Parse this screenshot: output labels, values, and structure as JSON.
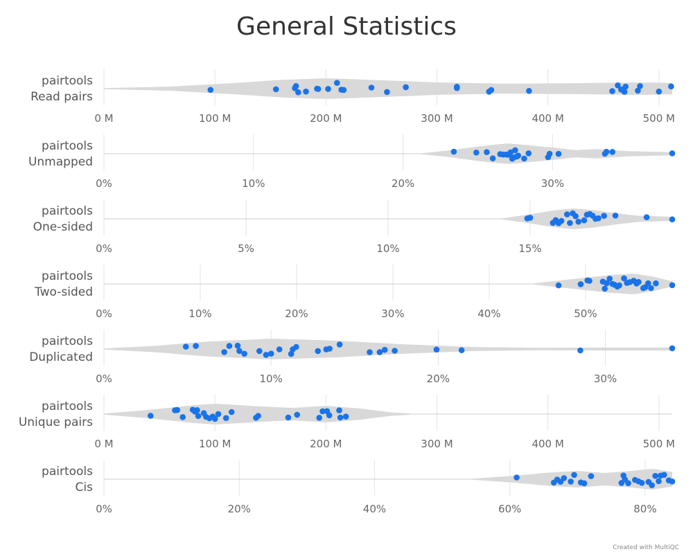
{
  "title": "General Statistics",
  "credit": "Created with MultiQC",
  "colors": {
    "point": "#1a73e8",
    "violin": "#d9d9d9",
    "grid": "#e3e3e3",
    "axis_line": "#cccccc"
  },
  "chart_data": [
    {
      "type": "violin",
      "label_lines": [
        "pairtools",
        "Read pairs"
      ],
      "unit": "M",
      "xlim": [
        0,
        512
      ],
      "ticks": [
        0,
        100,
        200,
        300,
        400,
        500
      ],
      "tick_labels": [
        "0 M",
        "100 M",
        "200 M",
        "300 M",
        "400 M",
        "500 M"
      ],
      "violin_range": [
        0,
        512
      ],
      "density": [
        [
          0,
          0.05
        ],
        [
          60,
          0.2
        ],
        [
          120,
          0.55
        ],
        [
          160,
          0.85
        ],
        [
          200,
          1.0
        ],
        [
          240,
          0.85
        ],
        [
          300,
          0.6
        ],
        [
          360,
          0.48
        ],
        [
          420,
          0.52
        ],
        [
          480,
          0.6
        ],
        [
          512,
          0.55
        ]
      ],
      "values": [
        96,
        155,
        172,
        173,
        175,
        182,
        192,
        193,
        202,
        210,
        214,
        216,
        241,
        255,
        272,
        318,
        318,
        347,
        349,
        383,
        458,
        463,
        466,
        469,
        470,
        481,
        483,
        500,
        511
      ]
    },
    {
      "type": "violin",
      "label_lines": [
        "pairtools",
        "Unmapped"
      ],
      "unit": "%",
      "xlim": [
        0,
        38
      ],
      "ticks": [
        0,
        10,
        20,
        30
      ],
      "tick_labels": [
        "0%",
        "10%",
        "20%",
        "30%"
      ],
      "violin_range": [
        21.2,
        38
      ],
      "density": [
        [
          21.2,
          0.05
        ],
        [
          23,
          0.3
        ],
        [
          25,
          0.7
        ],
        [
          27,
          1.0
        ],
        [
          28.5,
          0.8
        ],
        [
          30,
          0.6
        ],
        [
          31.5,
          0.35
        ],
        [
          33,
          0.45
        ],
        [
          35,
          0.25
        ],
        [
          38,
          0.15
        ]
      ],
      "values": [
        23.4,
        24.9,
        25.6,
        26,
        26.5,
        26.7,
        26.9,
        27,
        27.1,
        27.2,
        27.3,
        27.4,
        27.5,
        27.6,
        27.7,
        28.1,
        28.4,
        29.7,
        29.8,
        30.4,
        33.5,
        33.6,
        34,
        38
      ]
    },
    {
      "type": "violin",
      "label_lines": [
        "pairtools",
        "One-sided"
      ],
      "unit": "%",
      "xlim": [
        0,
        20
      ],
      "ticks": [
        0,
        5,
        10,
        15
      ],
      "tick_labels": [
        "0%",
        "5%",
        "10%",
        "15%"
      ],
      "violin_range": [
        14,
        20
      ],
      "density": [
        [
          14,
          0.05
        ],
        [
          14.8,
          0.35
        ],
        [
          15.8,
          0.8
        ],
        [
          16.5,
          1.0
        ],
        [
          17.2,
          0.85
        ],
        [
          18,
          0.55
        ],
        [
          18.8,
          0.3
        ],
        [
          20,
          0.2
        ]
      ],
      "values": [
        14.9,
        15,
        15.8,
        15.9,
        16,
        16.1,
        16.3,
        16.4,
        16.5,
        16.6,
        16.7,
        16.9,
        17,
        17.1,
        17.2,
        17.3,
        17.4,
        17.6,
        18,
        19.1,
        20
      ]
    },
    {
      "type": "violin",
      "label_lines": [
        "pairtools",
        "Two-sided"
      ],
      "unit": "%",
      "xlim": [
        0,
        59
      ],
      "ticks": [
        0,
        10,
        20,
        30,
        40,
        50
      ],
      "tick_labels": [
        "0%",
        "10%",
        "20%",
        "30%",
        "40%",
        "50%"
      ],
      "violin_range": [
        44.6,
        59
      ],
      "density": [
        [
          44.6,
          0.05
        ],
        [
          47,
          0.3
        ],
        [
          50,
          0.6
        ],
        [
          52.5,
          0.85
        ],
        [
          55,
          1.0
        ],
        [
          57,
          0.7
        ],
        [
          59,
          0.25
        ]
      ],
      "values": [
        47.2,
        49.5,
        50.2,
        50.4,
        51.8,
        52,
        52.2,
        52.5,
        52.8,
        53,
        53.3,
        53.5,
        54,
        54.3,
        54.6,
        55,
        55.3,
        55.5,
        56,
        56.2,
        56.5,
        56.8,
        57.3,
        59
      ]
    },
    {
      "type": "violin",
      "label_lines": [
        "pairtools",
        "Duplicated"
      ],
      "unit": "%",
      "xlim": [
        0,
        34
      ],
      "ticks": [
        0,
        10,
        20,
        30
      ],
      "tick_labels": [
        "0%",
        "10%",
        "20%",
        "30%"
      ],
      "violin_range": [
        0,
        34
      ],
      "density": [
        [
          0,
          0.05
        ],
        [
          3,
          0.3
        ],
        [
          6,
          0.7
        ],
        [
          10,
          1.0
        ],
        [
          14,
          0.8
        ],
        [
          18,
          0.45
        ],
        [
          22,
          0.2
        ],
        [
          26,
          0.12
        ],
        [
          30,
          0.14
        ],
        [
          34,
          0.14
        ]
      ],
      "values": [
        4.9,
        5.5,
        7.2,
        7.5,
        8,
        8.1,
        8.4,
        9.3,
        9.7,
        10,
        10.5,
        11.2,
        11.3,
        11.5,
        12.8,
        13.3,
        13.5,
        14.1,
        15.9,
        16.5,
        16.8,
        17.4,
        19.9,
        21.4,
        28.5,
        34
      ]
    },
    {
      "type": "violin",
      "label_lines": [
        "pairtools",
        "Unique pairs"
      ],
      "unit": "M",
      "xlim": [
        0,
        512
      ],
      "ticks": [
        0,
        100,
        200,
        300,
        400,
        500
      ],
      "tick_labels": [
        "0 M",
        "100 M",
        "200 M",
        "300 M",
        "400 M",
        "500 M"
      ],
      "violin_range": [
        0,
        277
      ],
      "density": [
        [
          0,
          0.05
        ],
        [
          40,
          0.4
        ],
        [
          80,
          0.85
        ],
        [
          100,
          1.0
        ],
        [
          140,
          0.75
        ],
        [
          170,
          0.6
        ],
        [
          200,
          0.8
        ],
        [
          230,
          0.55
        ],
        [
          260,
          0.15
        ],
        [
          277,
          0.05
        ]
      ],
      "values": [
        42,
        64,
        66,
        71,
        80,
        82,
        84,
        85,
        90,
        92,
        95,
        98,
        100,
        103,
        110,
        115,
        137,
        139,
        166,
        174,
        194,
        197,
        201,
        203,
        212,
        213,
        218
      ]
    },
    {
      "type": "violin",
      "label_lines": [
        "pairtools",
        "Cis"
      ],
      "unit": "%",
      "xlim": [
        0,
        84
      ],
      "ticks": [
        0,
        20,
        40,
        60,
        80
      ],
      "tick_labels": [
        "0%",
        "20%",
        "40%",
        "60%",
        "80%"
      ],
      "violin_range": [
        54.4,
        84
      ],
      "density": [
        [
          54.4,
          0.05
        ],
        [
          60,
          0.3
        ],
        [
          66,
          0.65
        ],
        [
          70,
          0.8
        ],
        [
          74,
          0.6
        ],
        [
          78,
          0.8
        ],
        [
          81,
          1.0
        ],
        [
          84,
          0.7
        ]
      ],
      "values": [
        61,
        66.5,
        67,
        67.5,
        68,
        69,
        69.5,
        70.5,
        71,
        72,
        76.5,
        76.8,
        77,
        77.5,
        78.5,
        79,
        79.5,
        80.5,
        81,
        81.5,
        82,
        82.3,
        82.8,
        83.5,
        84
      ]
    }
  ]
}
